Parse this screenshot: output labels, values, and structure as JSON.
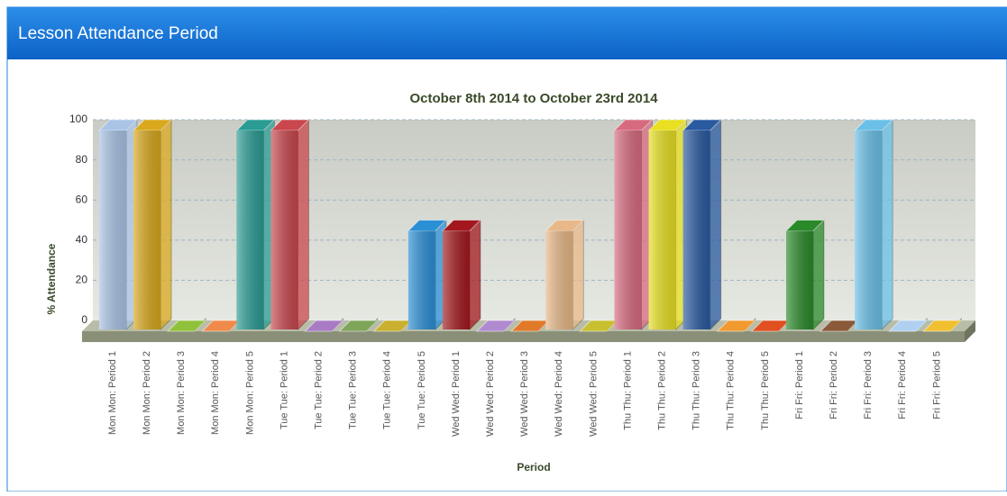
{
  "header": {
    "title": "Lesson Attendance Period"
  },
  "chart_data": {
    "type": "bar3d",
    "title": "October 8th 2014 to October 23rd 2014",
    "x_label": "Period",
    "y_label": "% Attendance",
    "categories": [
      "Mon Mon: Period 1",
      "Mon Mon: Period 2",
      "Mon Mon: Period 3",
      "Mon Mon: Period 4",
      "Mon Mon: Period 5",
      "Tue Tue: Period 1",
      "Tue Tue: Period 2",
      "Tue Tue: Period 3",
      "Tue Tue: Period 4",
      "Tue Tue: Period 5",
      "Wed Wed: Period 1",
      "Wed Wed: Period 2",
      "Wed Wed: Period 3",
      "Wed Wed: Period 4",
      "Wed Wed: Period 5",
      "Thu Thu: Period 1",
      "Thu Thu: Period 2",
      "Thu Thu: Period 3",
      "Thu Thu: Period 4",
      "Thu Thu: Period 5",
      "Fri Fri: Period 1",
      "Fri Fri: Period 2",
      "Fri Fri: Period 3",
      "Fri Fri: Period 4",
      "Fri Fri: Period 5"
    ],
    "values": [
      100,
      100,
      0,
      0,
      100,
      100,
      0,
      0,
      0,
      50,
      50,
      0,
      0,
      50,
      0,
      100,
      100,
      100,
      0,
      0,
      50,
      0,
      100,
      0,
      0
    ],
    "colors": [
      "#a9c4e6",
      "#d9a81c",
      "#8fc23a",
      "#f08a4b",
      "#2a9c94",
      "#c9474d",
      "#a97bc4",
      "#7fa55a",
      "#c9b030",
      "#2b8fd6",
      "#a3181e",
      "#b08ad0",
      "#e07a2a",
      "#e8b888",
      "#c8c030",
      "#d86a80",
      "#e8e020",
      "#2a5aa0",
      "#f09a30",
      "#e05020",
      "#2a8a2a",
      "#8a5a3a",
      "#6ac0e8",
      "#b0d0f0",
      "#f0c030"
    ],
    "ylim": [
      0,
      100
    ],
    "yticks": [
      0,
      20,
      40,
      60,
      80,
      100
    ],
    "grid": true
  }
}
